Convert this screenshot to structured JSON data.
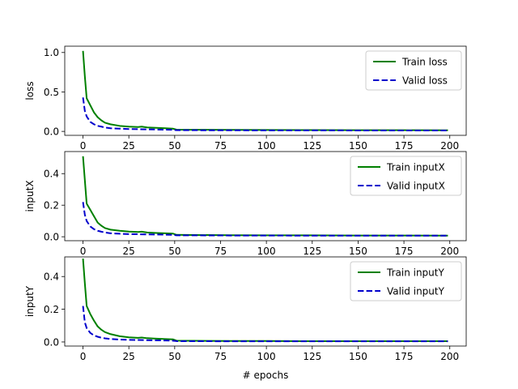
{
  "chart_data": [
    {
      "type": "line",
      "ylabel": "loss",
      "xlabel": "",
      "xlim": [
        -9.95,
        208.95
      ],
      "ylim": [
        -0.05,
        1.08
      ],
      "xticks": [
        0,
        25,
        50,
        75,
        100,
        125,
        150,
        175,
        200
      ],
      "xtick_labels": [
        "0",
        "25",
        "50",
        "75",
        "100",
        "125",
        "150",
        "175",
        "200"
      ],
      "yticks": [
        0.0,
        0.5,
        1.0
      ],
      "ytick_labels": [
        "0.0",
        "0.5",
        "1.0"
      ],
      "legend_position": "top-right",
      "series": [
        {
          "name": "Train loss",
          "color": "#008000",
          "style": "solid",
          "x": [
            0,
            1,
            2,
            4,
            6,
            8,
            10,
            12,
            15,
            20,
            25,
            30,
            32,
            35,
            40,
            45,
            49,
            51,
            60,
            80,
            100,
            120,
            150,
            175,
            199
          ],
          "y": [
            1.02,
            0.7,
            0.42,
            0.33,
            0.24,
            0.18,
            0.14,
            0.11,
            0.09,
            0.07,
            0.06,
            0.055,
            0.06,
            0.05,
            0.045,
            0.04,
            0.035,
            0.022,
            0.021,
            0.019,
            0.018,
            0.017,
            0.016,
            0.015,
            0.014
          ]
        },
        {
          "name": "Valid loss",
          "color": "#0000cc",
          "style": "dashed",
          "x": [
            0,
            1,
            2,
            4,
            6,
            8,
            10,
            12,
            15,
            20,
            25,
            30,
            35,
            40,
            45,
            49,
            51,
            60,
            80,
            100,
            120,
            150,
            175,
            199
          ],
          "y": [
            0.43,
            0.26,
            0.19,
            0.12,
            0.09,
            0.07,
            0.06,
            0.05,
            0.04,
            0.035,
            0.03,
            0.028,
            0.026,
            0.024,
            0.022,
            0.02,
            0.016,
            0.015,
            0.014,
            0.013,
            0.013,
            0.012,
            0.012,
            0.012
          ]
        }
      ]
    },
    {
      "type": "line",
      "ylabel": "inputX",
      "xlabel": "",
      "xlim": [
        -9.95,
        208.95
      ],
      "ylim": [
        -0.025,
        0.54
      ],
      "xticks": [
        0,
        25,
        50,
        75,
        100,
        125,
        150,
        175,
        200
      ],
      "xtick_labels": [
        "0",
        "25",
        "50",
        "75",
        "100",
        "125",
        "150",
        "175",
        "200"
      ],
      "yticks": [
        0.0,
        0.2,
        0.4
      ],
      "ytick_labels": [
        "0.0",
        "0.2",
        "0.4"
      ],
      "legend_position": "top-right",
      "series": [
        {
          "name": "Train inputX",
          "color": "#008000",
          "style": "solid",
          "x": [
            0,
            1,
            2,
            4,
            6,
            8,
            10,
            12,
            15,
            20,
            25,
            30,
            32,
            35,
            40,
            45,
            49,
            51,
            60,
            80,
            100,
            120,
            150,
            175,
            199
          ],
          "y": [
            0.51,
            0.36,
            0.21,
            0.17,
            0.13,
            0.09,
            0.07,
            0.055,
            0.045,
            0.038,
            0.033,
            0.03,
            0.032,
            0.027,
            0.024,
            0.022,
            0.02,
            0.012,
            0.011,
            0.01,
            0.009,
            0.009,
            0.008,
            0.008,
            0.007
          ]
        },
        {
          "name": "Valid inputX",
          "color": "#0000cc",
          "style": "dashed",
          "x": [
            0,
            1,
            2,
            4,
            6,
            8,
            10,
            12,
            15,
            20,
            25,
            30,
            35,
            40,
            45,
            49,
            51,
            60,
            80,
            100,
            120,
            150,
            175,
            199
          ],
          "y": [
            0.22,
            0.14,
            0.1,
            0.065,
            0.048,
            0.038,
            0.032,
            0.027,
            0.022,
            0.019,
            0.017,
            0.016,
            0.015,
            0.014,
            0.013,
            0.012,
            0.009,
            0.009,
            0.008,
            0.008,
            0.007,
            0.007,
            0.007,
            0.007
          ]
        }
      ]
    },
    {
      "type": "line",
      "ylabel": "inputY",
      "xlabel": "# epochs",
      "xlim": [
        -9.95,
        208.95
      ],
      "ylim": [
        -0.025,
        0.52
      ],
      "xticks": [
        0,
        25,
        50,
        75,
        100,
        125,
        150,
        175,
        200
      ],
      "xtick_labels": [
        "0",
        "25",
        "50",
        "75",
        "100",
        "125",
        "150",
        "175",
        "200"
      ],
      "yticks": [
        0.0,
        0.2,
        0.4
      ],
      "ytick_labels": [
        "0.0",
        "0.2",
        "0.4"
      ],
      "legend_position": "top-right",
      "series": [
        {
          "name": "Train inputY",
          "color": "#008000",
          "style": "solid",
          "x": [
            0,
            1,
            2,
            4,
            6,
            8,
            10,
            12,
            15,
            20,
            25,
            30,
            32,
            35,
            40,
            45,
            49,
            51,
            60,
            80,
            100,
            120,
            150,
            175,
            199
          ],
          "y": [
            0.51,
            0.36,
            0.22,
            0.17,
            0.13,
            0.095,
            0.075,
            0.06,
            0.048,
            0.035,
            0.028,
            0.025,
            0.027,
            0.023,
            0.02,
            0.018,
            0.016,
            0.008,
            0.007,
            0.006,
            0.006,
            0.005,
            0.005,
            0.005,
            0.005
          ]
        },
        {
          "name": "Valid inputY",
          "color": "#0000cc",
          "style": "dashed",
          "x": [
            0,
            1,
            2,
            4,
            6,
            8,
            10,
            12,
            15,
            20,
            25,
            30,
            35,
            40,
            45,
            49,
            51,
            60,
            80,
            100,
            120,
            150,
            175,
            199
          ],
          "y": [
            0.22,
            0.12,
            0.085,
            0.055,
            0.04,
            0.032,
            0.026,
            0.022,
            0.018,
            0.015,
            0.013,
            0.012,
            0.011,
            0.01,
            0.009,
            0.008,
            0.005,
            0.005,
            0.004,
            0.004,
            0.004,
            0.004,
            0.004,
            0.004
          ]
        }
      ]
    }
  ]
}
